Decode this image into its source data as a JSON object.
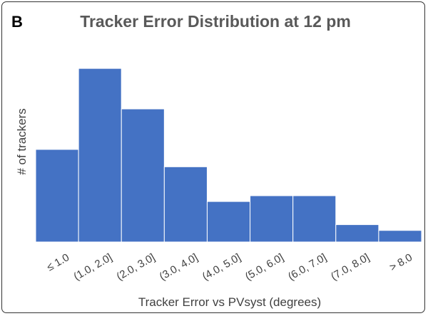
{
  "panel_label": "B",
  "chart_data": {
    "type": "bar",
    "title": "Tracker Error Distribution at 12 pm",
    "xlabel": "Tracker Error vs PVsyst (degrees)",
    "ylabel": "# of trackers",
    "categories": [
      "≤ 1.0",
      "(1.0, 2.0]",
      "(2.0, 3.0]",
      "(3.0, 4.0]",
      "(4.0, 5.0]",
      "(5.0, 6.0]",
      "(6.0, 7.0]",
      "(7.0, 8.0]",
      "> 8.0"
    ],
    "values": [
      16,
      30,
      23,
      13,
      7,
      8,
      8,
      3,
      2
    ],
    "ylim": [
      0,
      31
    ],
    "grid": false,
    "colors": {
      "bar": "#4472C4"
    }
  }
}
